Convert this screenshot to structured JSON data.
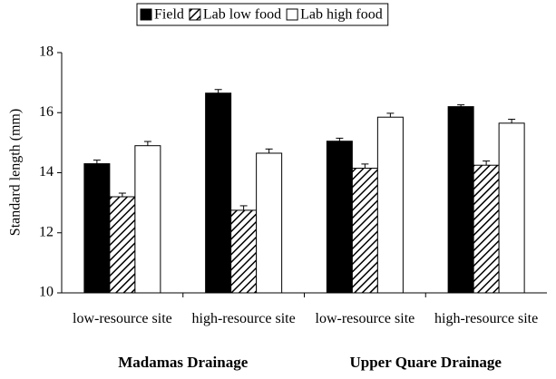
{
  "chart_data": {
    "type": "bar",
    "ylabel": "Standard length (mm)",
    "categories": [
      "low-resource site",
      "high-resource site",
      "low-resource site",
      "high-resource site"
    ],
    "groups": [
      "Madamas Drainage",
      "Upper Quare Drainage"
    ],
    "series": [
      {
        "name": "Field",
        "color": "#000000",
        "values": [
          14.3,
          16.65,
          15.05,
          16.2
        ],
        "errors": [
          0.12,
          0.12,
          0.1,
          0.06
        ]
      },
      {
        "name": "Lab low food",
        "color": "#ffffff",
        "pattern": "hatch",
        "values": [
          13.2,
          12.75,
          14.15,
          14.25
        ],
        "errors": [
          0.12,
          0.15,
          0.14,
          0.14
        ]
      },
      {
        "name": "Lab high food",
        "color": "#ffffff",
        "values": [
          14.9,
          14.65,
          15.85,
          15.65
        ],
        "errors": [
          0.14,
          0.14,
          0.13,
          0.13
        ]
      }
    ],
    "ylim": [
      10,
      18
    ],
    "yticks": [
      10,
      12,
      14,
      16,
      18
    ],
    "legend": "top"
  }
}
